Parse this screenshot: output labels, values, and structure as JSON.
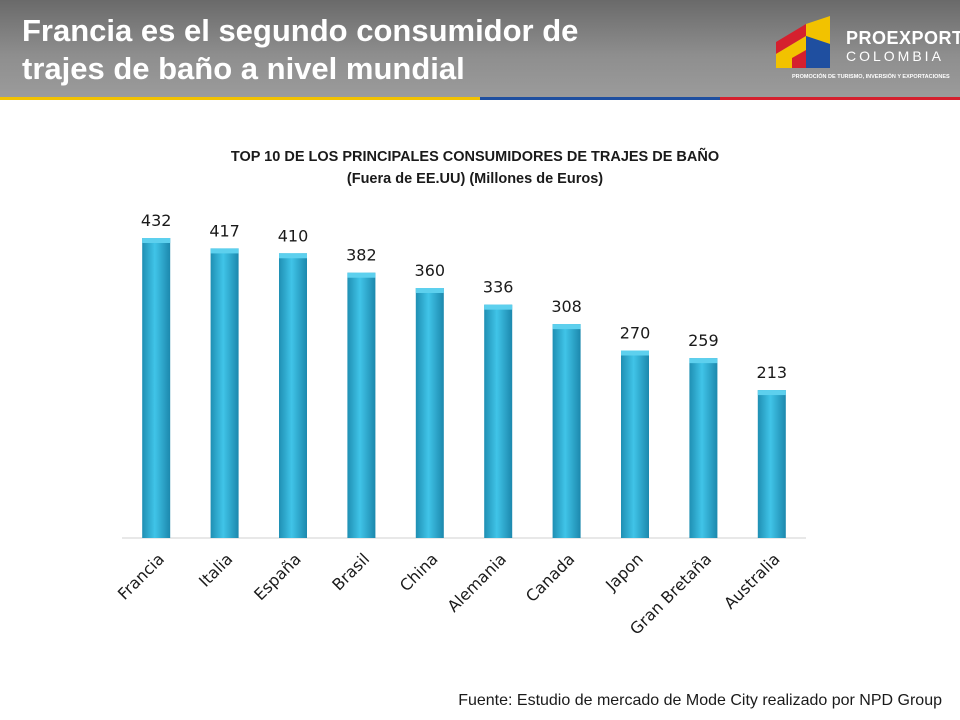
{
  "header": {
    "title_line1": "Francia es el segundo consumidor de",
    "title_line2": "trajes de baño a nivel mundial"
  },
  "logo": {
    "name": "PROEXPORT",
    "country": "COLOMBIA",
    "tagline": "PROMOCIÓN DE TURISMO, INVERSIÓN Y EXPORTACIONES"
  },
  "chart_data": {
    "type": "bar",
    "title_line1": "TOP 10 DE LOS PRINCIPALES CONSUMIDORES DE TRAJES DE BAÑO",
    "title_line2": "(Fuera de EE.UU) (Millones de Euros)",
    "categories": [
      "Francia",
      "Italia",
      "España",
      "Brasil",
      "China",
      "Alemania",
      "Canada",
      "Japon",
      "Gran Bretaña",
      "Australia"
    ],
    "values": [
      432,
      417,
      410,
      382,
      360,
      336,
      308,
      270,
      259,
      213
    ],
    "ylim": [
      0,
      432
    ],
    "xlabel": "",
    "ylabel": "",
    "grid": false,
    "legend": "none",
    "bar_color": "#2fb5da"
  },
  "footer": {
    "source": "Fuente: Estudio de mercado de Mode City realizado por NPD Group"
  }
}
